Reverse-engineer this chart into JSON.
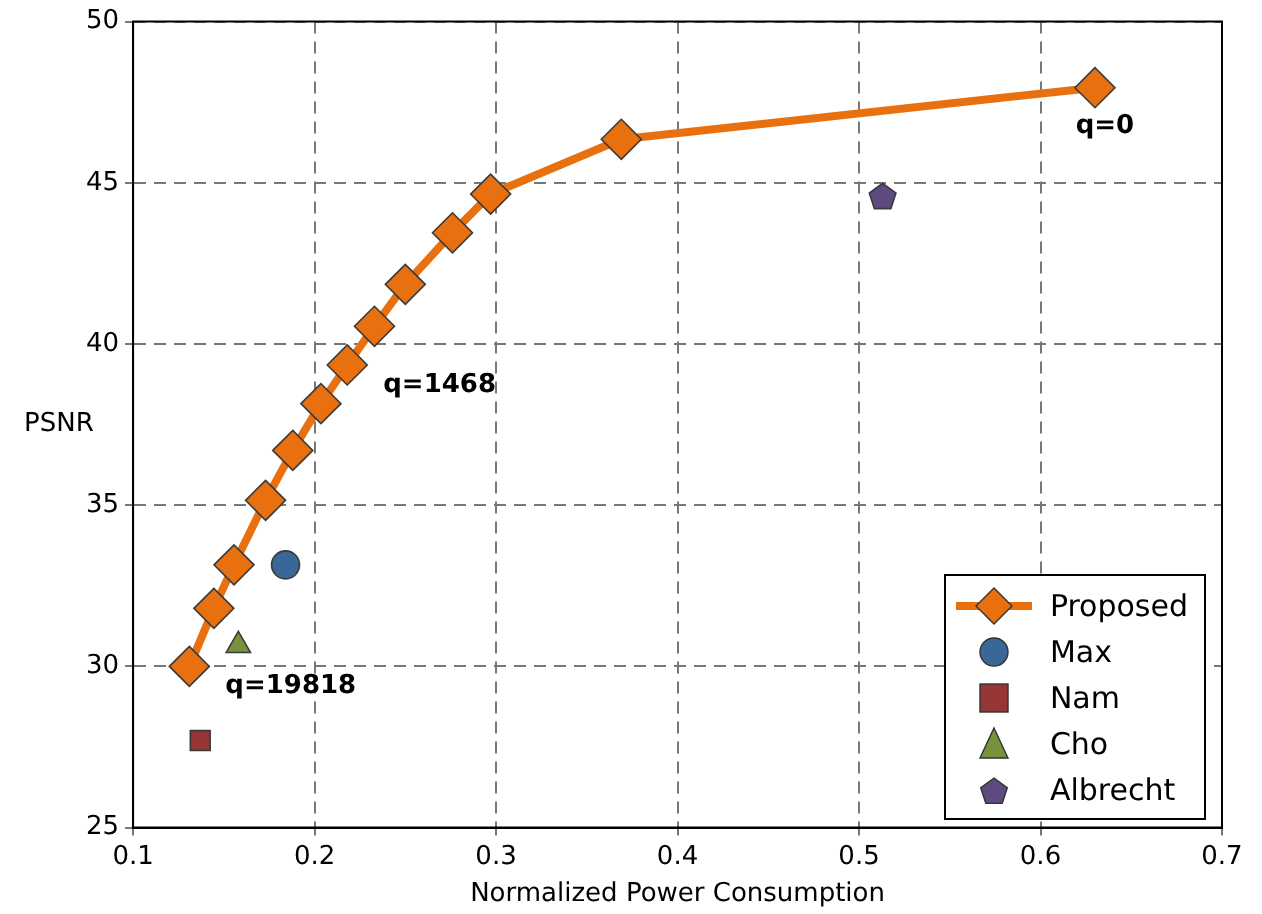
{
  "chart_data": {
    "type": "line",
    "xlabel": "Normalized Power Consumption",
    "ylabel": "PSNR",
    "xlim": [
      0.1,
      0.7
    ],
    "xticks": [
      0.1,
      0.2,
      0.3,
      0.4,
      0.5,
      0.6,
      0.7
    ],
    "ylim": [
      25,
      50
    ],
    "yticks": [
      25,
      30,
      35,
      40,
      45,
      50
    ],
    "grid": true,
    "legend": "bottom right",
    "series": [
      {
        "name": "Proposed",
        "color": "#e8700e",
        "marker": "diamond",
        "x": [
          0.131,
          0.1445,
          0.1556,
          0.173,
          0.188,
          0.2035,
          0.218,
          0.233,
          0.25,
          0.276,
          0.297,
          0.369,
          0.63
        ],
        "values": [
          30.0,
          31.8,
          33.15,
          35.15,
          36.7,
          38.15,
          39.35,
          40.55,
          41.85,
          43.45,
          44.65,
          46.35,
          47.95
        ]
      },
      {
        "name": "Max",
        "type": "scatter",
        "color": "#3a6698",
        "marker": "circle",
        "x": [
          0.184
        ],
        "values": [
          33.15
        ]
      },
      {
        "name": "Nam",
        "type": "scatter",
        "color": "#953535",
        "marker": "square",
        "x": [
          0.137
        ],
        "values": [
          27.7
        ]
      },
      {
        "name": "Cho",
        "type": "scatter",
        "color": "#77923a",
        "marker": "triangle",
        "x": [
          0.158
        ],
        "values": [
          30.65
        ]
      },
      {
        "name": "Albrecht",
        "type": "scatter",
        "color": "#5f4a80",
        "x": [
          0.513
        ],
        "values": [
          44.55
        ]
      }
    ],
    "annotations": [
      {
        "text": "q=0",
        "x": 0.63,
        "y": 47.95
      },
      {
        "text": "q=1468",
        "x": 0.218,
        "y": 39.35
      },
      {
        "text": "q=19818",
        "x": 0.131,
        "y": 30.0
      }
    ]
  }
}
